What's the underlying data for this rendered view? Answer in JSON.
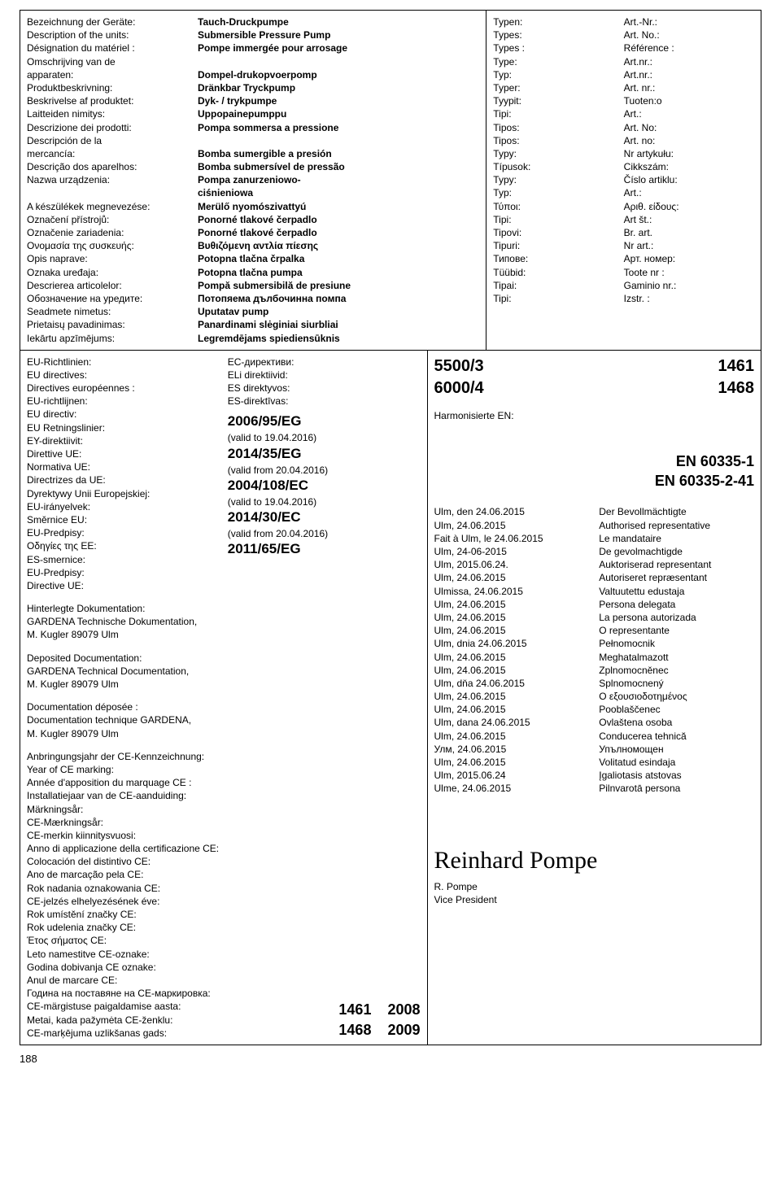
{
  "descriptions": [
    {
      "label": "Bezeichnung der Geräte:",
      "value": "Tauch-Druckpumpe"
    },
    {
      "label": "Description of the units:",
      "value": "Submersible Pressure Pump"
    },
    {
      "label": "Désignation du matériel :",
      "value": "Pompe immergée pour arrosage"
    },
    {
      "label": "Omschrijving van de",
      "value": ""
    },
    {
      "label": "apparaten:",
      "value": "Dompel-drukopvoerpomp"
    },
    {
      "label": "Produktbeskrivning:",
      "value": "Dränkbar Tryckpump"
    },
    {
      "label": "Beskrivelse af produktet:",
      "value": "Dyk- / trykpumpe"
    },
    {
      "label": "Laitteiden nimitys:",
      "value": "Uppopainepumppu"
    },
    {
      "label": "Descrizione dei prodotti:",
      "value": "Pompa sommersa a pressione"
    },
    {
      "label": "Descripción de la",
      "value": ""
    },
    {
      "label": "mercancía:",
      "value": "Bomba sumergible a presión"
    },
    {
      "label": "Descrição dos aparelhos:",
      "value": "Bomba submersível de pressão"
    },
    {
      "label": "Nazwa urządzenia:",
      "value": "Pompa zanurzeniowo-"
    },
    {
      "label": "",
      "value": "ciśnieniowa"
    },
    {
      "label": "A készülékek megnevezése:",
      "value": "Merülő nyomószivattyú"
    },
    {
      "label": "Označení přístrojů:",
      "value": "Ponorné tlakové čerpadlo"
    },
    {
      "label": "Označenie zariadenia:",
      "value": "Ponorné tlakové čerpadlo"
    },
    {
      "label": "Ονομασία της συσκευής:",
      "value": "Βυθιζόμενη αντλία πίεσης"
    },
    {
      "label": "Opis naprave:",
      "value": "Potopna tlačna črpalka"
    },
    {
      "label": "Oznaka uređaja:",
      "value": "Potopna tlačna pumpa"
    },
    {
      "label": "Descrierea articolelor:",
      "value": "Pompă submersibilă de presiune"
    },
    {
      "label": "Обозначение на уредите:",
      "value": "Потопяема дълбочинна помпа"
    },
    {
      "label": "Seadmete nimetus:",
      "value": "Uputatav pump"
    },
    {
      "label": "Prietaisų pavadinimas:",
      "value": "Panardinami slėginiai siurbliai"
    },
    {
      "label": "Iekārtu apzīmējums:",
      "value": "Legremdējams spiediensūknis"
    }
  ],
  "types_labels": [
    "Typen:",
    "Types:",
    "Types :",
    "Type:",
    "Typ:",
    "Typer:",
    "Tyypit:",
    "Tipi:",
    "Tipos:",
    "Tipos:",
    "Typy:",
    "Típusok:",
    "Typy:",
    "Typ:",
    "Τύποι:",
    "Tipi:",
    "Tipovi:",
    "Tipuri:",
    "Типове:",
    "Tüübid:",
    "Tipai:",
    "Tipi:"
  ],
  "artno_labels": [
    "Art.-Nr.:",
    "Art. No.:",
    "Référence :",
    "Art.nr.:",
    "Art.nr.:",
    "Art. nr.:",
    "Tuoten:o",
    "Art.:",
    "Art. No:",
    "Art. no:",
    "Nr artykułu:",
    "Cikkszám:",
    "Číslo artiklu:",
    "Art.:",
    "Αριθ. είδους:",
    "Art št.:",
    "Br. art.",
    "Nr art.:",
    "Арт. номер:",
    "Toote nr :",
    "Gaminio nr.:",
    "Izstr. :"
  ],
  "eu_labels_left": [
    "EU-Richtlinien:",
    "EU directives:",
    "Directives européennes :",
    "EU-richtlijnen:",
    "EU directiv:",
    "EU Retningslinier:",
    "EY-direktiivit:",
    "Direttive UE:",
    "Normativa UE:",
    "Directrizes da UE:",
    "Dyrektywy Unii Europejskiej:",
    "EU-irányelvek:",
    "Směrnice EU:",
    "EU-Predpisy:",
    "Οδηγίες της ΕΕ:",
    "ES-smernice:",
    "EU-Predpisy:",
    "Directive UE:"
  ],
  "eu_labels_right": [
    "ЕС-директиви:",
    "ELi direktiivid:",
    "ES direktyvos:",
    "ES-direktīvas:"
  ],
  "directives": [
    {
      "name": "2006/95/EG",
      "note": "(valid to 19.04.2016)"
    },
    {
      "name": "2014/35/EG",
      "note": "(valid from 20.04.2016)"
    },
    {
      "name": "2004/108/EC",
      "note": "(valid to 19.04.2016)"
    },
    {
      "name": "2014/30/EC",
      "note": "(valid from 20.04.2016)"
    },
    {
      "name": "2011/65/EG",
      "note": ""
    }
  ],
  "doc_de_title": "Hinterlegte Dokumentation:",
  "doc_de_1": "GARDENA Technische Dokumentation,",
  "doc_de_2": "M. Kugler 89079 Ulm",
  "doc_en_title": "Deposited Documentation:",
  "doc_en_1": "GARDENA Technical Documentation,",
  "doc_en_2": "M. Kugler 89079 Ulm",
  "doc_fr_title": "Documentation déposée :",
  "doc_fr_1": "Documentation technique GARDENA,",
  "doc_fr_2": "M. Kugler 89079 Ulm",
  "ce_labels": [
    "Anbringungsjahr der CE-Kennzeichnung:",
    "Year of CE marking:",
    "Année d'apposition du marquage CE :",
    "Installatiejaar van de CE-aanduiding:",
    "Märkningsår:",
    "CE-Mærkningsår:",
    "CE-merkin kiinnitysvuosi:",
    "Anno di applicazione della certificazione CE:",
    "Colocación del distintivo CE:",
    "Ano de marcação pela CE:",
    "Rok nadania oznakowania CE:",
    "CE-jelzés elhelyezésének éve:",
    "Rok umístění značky CE:",
    "Rok udelenia značky CE:",
    "Έτος σήματος CE:",
    "Leto namestitve CE-oznake:",
    "Godina dobivanja CE oznake:",
    "Anul de marcare CE:",
    "Година на поставяне на CE-маркировка:",
    "CE-märgistuse paigaldamise aasta:",
    "Metai, kada pažymėta CE-ženklu:",
    "CE-marķējuma uzlikšanas gads:"
  ],
  "ce_years_col1": [
    "1461",
    "1468"
  ],
  "ce_years_col2": [
    "2008",
    "2009"
  ],
  "models_col1": [
    "5500/3",
    "6000/4"
  ],
  "models_col2": [
    "1461",
    "1468"
  ],
  "harm_title": "Harmonisierte EN:",
  "harm_en": [
    "EN 60335-1",
    "EN 60335-2-41"
  ],
  "dates": [
    "Ulm, den 24.06.2015",
    "Ulm, 24.06.2015",
    "Fait à Ulm, le 24.06.2015",
    "Ulm, 24-06-2015",
    "Ulm, 2015.06.24.",
    "Ulm, 24.06.2015",
    "Ulmissa, 24.06.2015",
    "Ulm, 24.06.2015",
    "Ulm, 24.06.2015",
    "Ulm, 24.06.2015",
    "Ulm, dnia 24.06.2015",
    "Ulm, 24.06.2015",
    "Ulm, 24.06.2015",
    "Ulm, dňa 24.06.2015",
    "Ulm, 24.06.2015",
    "Ulm, 24.06.2015",
    "Ulm, dana 24.06.2015",
    "Ulm, 24.06.2015",
    "Улм, 24.06.2015",
    "Ulm, 24.06.2015",
    "Ulm, 2015.06.24",
    "Ulme, 24.06.2015"
  ],
  "reps": [
    "Der Bevollmächtigte",
    "Authorised representative",
    "Le mandataire",
    "De gevolmachtigde",
    "Auktoriserad representant",
    "Autoriseret repræsentant",
    "Valtuutettu edustaja",
    "Persona delegata",
    "La persona autorizada",
    "O representante",
    "Pełnomocnik",
    "Meghatalmazott",
    "Zplnomocněnec",
    "Splnomocnený",
    "Ο εξουσιοδοτημένος",
    "Pooblaščenec",
    "Ovlaštena osoba",
    "Conducerea tehnică",
    "Упълномощен",
    "Volitatud esindaja",
    "Įgaliotasis atstovas",
    "Pilnvarotā persona"
  ],
  "sig_script": "Reinhard Pompe",
  "sig_name": "R. Pompe",
  "sig_title": "Vice President",
  "page": "188"
}
